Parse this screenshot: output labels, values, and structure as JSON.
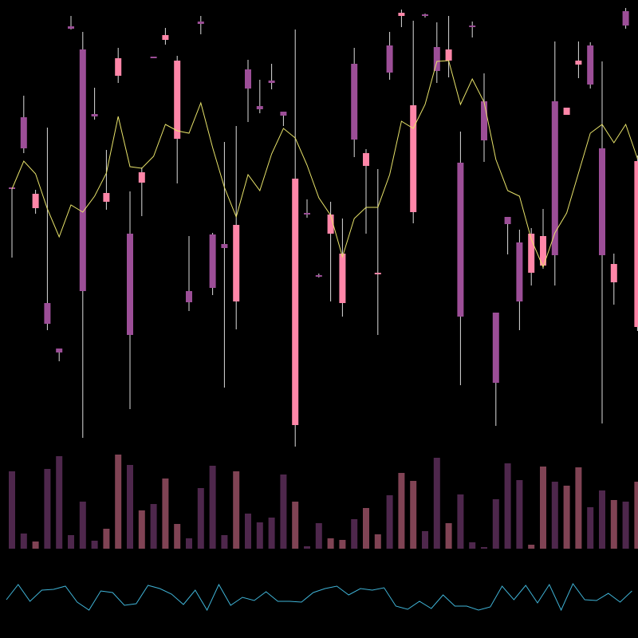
{
  "chart_data": {
    "type": "candlestick",
    "up_color": "#ff86a8",
    "down_color": "#9c4e97",
    "ylim": [
      0,
      560
    ],
    "open": [
      325,
      413,
      299,
      180,
      123,
      527,
      498,
      417,
      307,
      465,
      267,
      331,
      489,
      510,
      386,
      195,
      533,
      266,
      254,
      182,
      473,
      427,
      459,
      420,
      27,
      293,
      215,
      267,
      180,
      480,
      352,
      216,
      503,
      540,
      294,
      542,
      501,
      484,
      356,
      528,
      433,
      168,
      288,
      256,
      218,
      227,
      433,
      416,
      479,
      503,
      374,
      206,
      546,
      150
    ],
    "high": [
      325,
      440,
      322,
      400,
      123,
      540,
      520,
      450,
      372,
      500,
      320,
      350,
      489,
      525,
      490,
      264,
      540,
      268,
      382,
      402,
      485,
      460,
      480,
      420,
      523,
      310,
      217,
      307,
      286,
      500,
      373,
      348,
      520,
      548,
      534,
      543,
      532,
      540,
      395,
      533,
      468,
      168,
      288,
      272,
      274,
      298,
      508,
      425,
      508,
      507,
      483,
      242,
      550,
      365
    ],
    "low": [
      237,
      368,
      292,
      146,
      107,
      523,
      11,
      410,
      297,
      456,
      47,
      289,
      487,
      504,
      330,
      170,
      517,
      190,
      74,
      147,
      407,
      418,
      448,
      402,
      0,
      287,
      212,
      182,
      163,
      363,
      267,
      140,
      460,
      526,
      280,
      538,
      456,
      463,
      77,
      513,
      357,
      26,
      241,
      146,
      202,
      223,
      202,
      416,
      462,
      449,
      29,
      178,
      524,
      145
    ],
    "close": [
      323,
      374,
      317,
      154,
      118,
      524,
      195,
      414,
      318,
      487,
      140,
      344,
      487,
      516,
      484,
      181,
      530,
      199,
      249,
      278,
      449,
      423,
      456,
      415,
      336,
      291,
      214,
      291,
      242,
      385,
      368,
      218,
      469,
      544,
      428,
      540,
      471,
      498,
      163,
      526,
      384,
      80,
      279,
      182,
      267,
      264,
      240,
      425,
      484,
      454,
      240,
      229,
      528,
      358
    ],
    "ma": {
      "color": "#e8e36a",
      "values": [
        323,
        358,
        342,
        298,
        263,
        303,
        294,
        314,
        343,
        414,
        351,
        349,
        364,
        404,
        396,
        393,
        431,
        375,
        325,
        288,
        341,
        321,
        367,
        399,
        387,
        353,
        312,
        290,
        238,
        286,
        300,
        300,
        341,
        408,
        399,
        429,
        483,
        484,
        429,
        461,
        432,
        360,
        321,
        314,
        260,
        225,
        268,
        293,
        343,
        393,
        404,
        381,
        404,
        361
      ]
    },
    "volume": {
      "ylim": [
        0,
        128
      ],
      "values": [
        97,
        19,
        9,
        100,
        116,
        17,
        59,
        10,
        25,
        118,
        105,
        48,
        56,
        88,
        31,
        13,
        76,
        104,
        17,
        97,
        44,
        33,
        39,
        93,
        59,
        3,
        32,
        13,
        11,
        37,
        51,
        18,
        67,
        95,
        85,
        22,
        114,
        32,
        68,
        8,
        2,
        62,
        107,
        86,
        5,
        103,
        84,
        79,
        102,
        52,
        73,
        61,
        59,
        84
      ]
    },
    "oscillator": {
      "color": "#3fb3d6",
      "ylim": [
        0,
        100
      ],
      "values": [
        48,
        67,
        46,
        60,
        61,
        65,
        45,
        35,
        59,
        57,
        41,
        43,
        66,
        62,
        55,
        42,
        60,
        35,
        67,
        41,
        51,
        47,
        58,
        46,
        46,
        45,
        57,
        62,
        65,
        54,
        62,
        60,
        63,
        40,
        36,
        46,
        37,
        54,
        40,
        40,
        35,
        39,
        65,
        48,
        66,
        44,
        67,
        35,
        68,
        48,
        47,
        56,
        45,
        59
      ]
    }
  }
}
